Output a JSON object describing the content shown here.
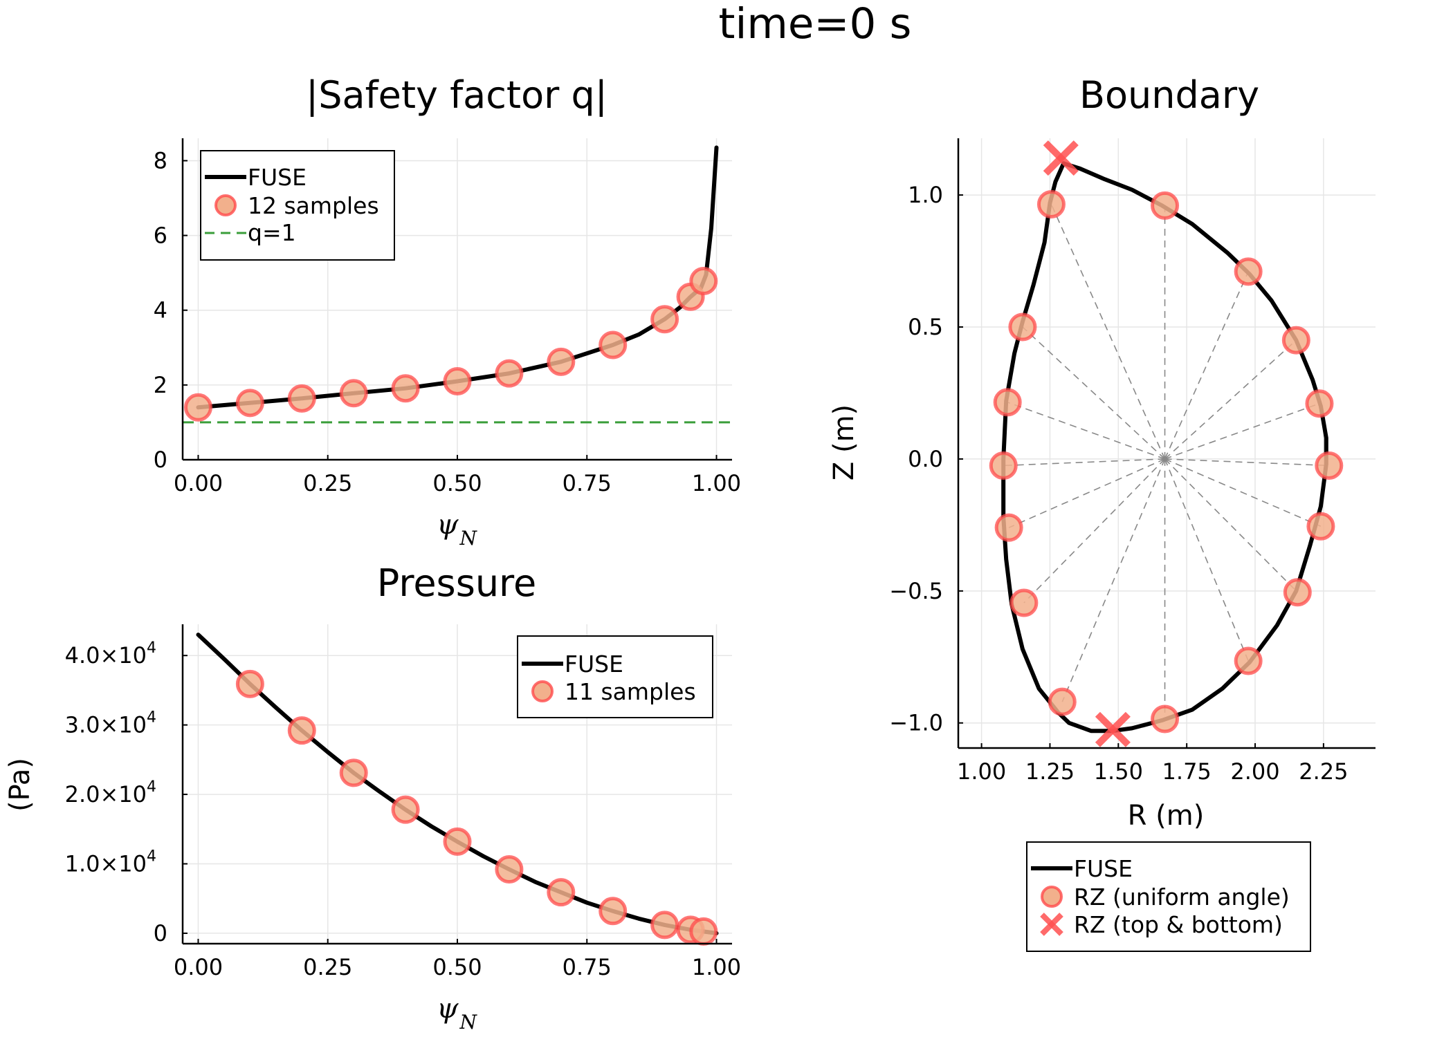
{
  "figure": {
    "title": "time=0 s"
  },
  "colors": {
    "fuse": "#000000",
    "sample_fill": "#f2b08c",
    "sample_edge": "#ff4b4b",
    "qline": "#3a9e3a",
    "spoke": "#888888",
    "xmarker": "#ff5050"
  },
  "chart_data": [
    {
      "id": "q",
      "type": "line",
      "title": "|Safety factor q|",
      "xlabel": "ψ",
      "xlabel_sub": "N",
      "ylabel": "",
      "xlim": [
        -0.03,
        1.03
      ],
      "ylim": [
        0,
        8.6
      ],
      "xticks": [
        0,
        0.25,
        0.5,
        0.75,
        1.0
      ],
      "xtick_labels": [
        "0.00",
        "0.25",
        "0.50",
        "0.75",
        "1.00"
      ],
      "yticks": [
        0,
        2,
        4,
        6,
        8
      ],
      "ytick_labels": [
        "0",
        "2",
        "4",
        "6",
        "8"
      ],
      "grid": true,
      "legend_position": "top-left",
      "series": [
        {
          "name": "FUSE",
          "kind": "line",
          "x": [
            0,
            0.1,
            0.2,
            0.3,
            0.4,
            0.5,
            0.6,
            0.7,
            0.8,
            0.85,
            0.9,
            0.93,
            0.95,
            0.97,
            0.98,
            0.99,
            1.0
          ],
          "y": [
            1.4,
            1.52,
            1.64,
            1.78,
            1.91,
            2.1,
            2.31,
            2.62,
            3.07,
            3.35,
            3.76,
            4.08,
            4.36,
            4.6,
            4.95,
            6.2,
            8.35
          ]
        },
        {
          "name": "12 samples",
          "kind": "scatter",
          "x": [
            0,
            0.1,
            0.2,
            0.3,
            0.4,
            0.5,
            0.6,
            0.7,
            0.8,
            0.9,
            0.95,
            0.975
          ],
          "y": [
            1.4,
            1.52,
            1.64,
            1.78,
            1.91,
            2.1,
            2.31,
            2.62,
            3.07,
            3.76,
            4.36,
            4.78
          ]
        },
        {
          "name": "q=1",
          "kind": "hline",
          "y": 1,
          "x": [
            -0.03,
            1.03
          ]
        }
      ]
    },
    {
      "id": "p",
      "type": "line",
      "title": "Pressure",
      "xlabel": "ψ",
      "xlabel_sub": "N",
      "ylabel": "(Pa)",
      "xlim": [
        -0.03,
        1.03
      ],
      "ylim": [
        -1500,
        44500
      ],
      "xticks": [
        0,
        0.25,
        0.5,
        0.75,
        1.0
      ],
      "xtick_labels": [
        "0.00",
        "0.25",
        "0.50",
        "0.75",
        "1.00"
      ],
      "yticks": [
        0,
        10000,
        20000,
        30000,
        40000
      ],
      "ytick_labels": [
        "0",
        "1.0×10",
        "2.0×10",
        "3.0×10",
        "4.0×10"
      ],
      "ytick_exponents": [
        "",
        "4",
        "4",
        "4",
        "4"
      ],
      "grid": true,
      "legend_position": "top-right",
      "series": [
        {
          "name": "FUSE",
          "kind": "line",
          "x": [
            0,
            0.05,
            0.1,
            0.15,
            0.2,
            0.25,
            0.3,
            0.35,
            0.4,
            0.45,
            0.5,
            0.55,
            0.6,
            0.65,
            0.7,
            0.75,
            0.8,
            0.85,
            0.9,
            0.95,
            1.0
          ],
          "y": [
            43000,
            39500,
            35900,
            32500,
            29200,
            26100,
            23100,
            20400,
            17800,
            15400,
            13200,
            11100,
            9200,
            7400,
            5900,
            4400,
            3200,
            2100,
            1200,
            500,
            0
          ]
        },
        {
          "name": "11 samples",
          "kind": "scatter",
          "x": [
            0.1,
            0.2,
            0.3,
            0.4,
            0.5,
            0.6,
            0.7,
            0.8,
            0.9,
            0.95,
            0.975
          ],
          "y": [
            35900,
            29200,
            23100,
            17800,
            13200,
            9200,
            5900,
            3200,
            1200,
            500,
            250
          ]
        }
      ]
    },
    {
      "id": "b",
      "type": "line",
      "title": "Boundary",
      "xlabel": "R (m)",
      "ylabel": "Z (m)",
      "xlim": [
        0.915,
        2.44
      ],
      "ylim": [
        -1.095,
        1.215
      ],
      "xticks": [
        1.0,
        1.25,
        1.5,
        1.75,
        2.0,
        2.25
      ],
      "xtick_labels": [
        "1.00",
        "1.25",
        "1.50",
        "1.75",
        "2.00",
        "2.25"
      ],
      "yticks": [
        -1.0,
        -0.5,
        0.0,
        0.5,
        1.0
      ],
      "ytick_labels": [
        "−1.0",
        "−0.5",
        "0.0",
        "0.5",
        "1.0"
      ],
      "grid": true,
      "legend_position": "bottom (outside)",
      "center": [
        1.67,
        0.0
      ],
      "series": [
        {
          "name": "FUSE",
          "kind": "line",
          "x": [
            1.3,
            1.36,
            1.45,
            1.55,
            1.66,
            1.77,
            1.9,
            1.98,
            2.06,
            2.15,
            2.21,
            2.24,
            2.26,
            2.26,
            2.24,
            2.2,
            2.15,
            2.08,
            1.98,
            1.88,
            1.77,
            1.66,
            1.55,
            1.48,
            1.4,
            1.32,
            1.28,
            1.21,
            1.15,
            1.11,
            1.09,
            1.08,
            1.08,
            1.09,
            1.12,
            1.15,
            1.19,
            1.23,
            1.25,
            1.27,
            1.3
          ],
          "y": [
            1.12,
            1.1,
            1.06,
            1.02,
            0.96,
            0.89,
            0.78,
            0.7,
            0.6,
            0.45,
            0.3,
            0.2,
            0.08,
            -0.02,
            -0.18,
            -0.33,
            -0.5,
            -0.63,
            -0.77,
            -0.87,
            -0.95,
            -0.99,
            -1.02,
            -1.03,
            -1.03,
            -1.0,
            -0.96,
            -0.87,
            -0.72,
            -0.55,
            -0.38,
            -0.22,
            0.0,
            0.22,
            0.4,
            0.52,
            0.66,
            0.82,
            0.97,
            1.05,
            1.12
          ]
        },
        {
          "name": "RZ (uniform angle)",
          "kind": "scatter",
          "x": [
            2.27,
            2.235,
            2.15,
            1.975,
            1.67,
            1.255,
            1.15,
            1.095,
            1.08,
            1.1,
            1.155,
            1.295,
            1.67,
            1.975,
            2.155,
            2.24
          ],
          "y": [
            -0.025,
            0.21,
            0.45,
            0.71,
            0.96,
            0.965,
            0.5,
            0.215,
            -0.025,
            -0.26,
            -0.545,
            -0.92,
            -0.985,
            -0.765,
            -0.505,
            -0.255
          ]
        },
        {
          "name": "RZ (top & bottom)",
          "kind": "xmarker",
          "x": [
            1.29,
            1.48
          ],
          "y": [
            1.14,
            -1.025
          ]
        }
      ]
    }
  ]
}
